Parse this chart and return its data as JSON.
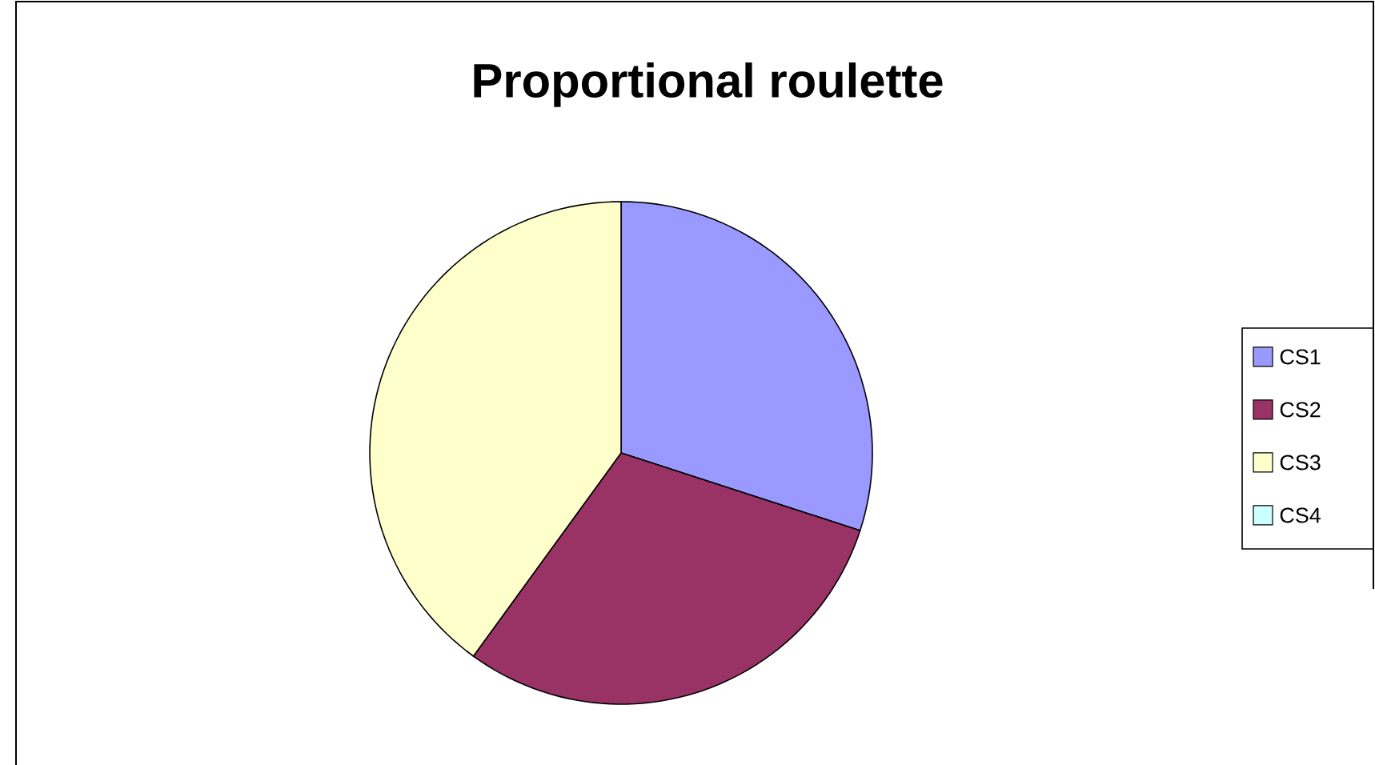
{
  "chart_data": {
    "type": "pie",
    "title": "Proportional roulette",
    "categories": [
      "CS1",
      "CS2",
      "CS3",
      "CS4"
    ],
    "values": [
      30,
      30,
      40,
      0
    ],
    "colors": [
      "#9999ff",
      "#993366",
      "#ffffcc",
      "#ccffff"
    ],
    "legend": "right"
  }
}
